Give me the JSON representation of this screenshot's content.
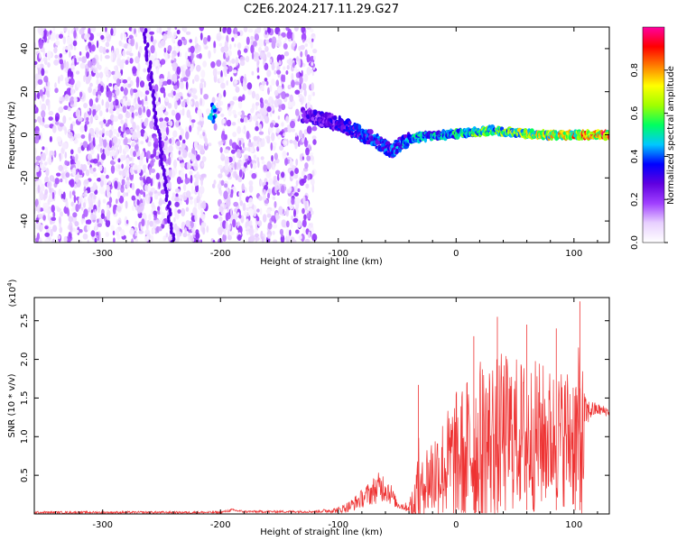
{
  "title": "C2E6.2024.217.11.29.G27",
  "chart_data": [
    {
      "type": "heatmap",
      "name": "spectrogram",
      "xlabel": "Height of straight line (km)",
      "ylabel": "Frequency (Hz)",
      "xlim": [
        -358,
        130
      ],
      "ylim": [
        -50,
        50
      ],
      "xticks": [
        -300,
        -200,
        -100,
        0,
        100
      ],
      "xtick_labels": [
        "-300",
        "-200",
        "-100",
        "0",
        "100"
      ],
      "yticks": [
        -40,
        -20,
        0,
        20,
        40
      ],
      "ytick_labels": [
        "-40",
        "-20",
        "0",
        "20",
        "40"
      ],
      "colorbar": {
        "label": "Normalized spectral amplitude",
        "range": [
          0,
          1
        ],
        "ticks": [
          0.0,
          0.2,
          0.4,
          0.6,
          0.8
        ],
        "tick_labels": [
          "0.0",
          "0.2",
          "0.4",
          "0.6",
          "0.8"
        ],
        "colors": [
          "#ffffff",
          "#e8d0ff",
          "#a040ff",
          "#6000e0",
          "#0000ff",
          "#00c8ff",
          "#00ff60",
          "#a0ff00",
          "#ffff00",
          "#ff8000",
          "#ff0000",
          "#ff00a0"
        ]
      },
      "noise_region": [
        -358,
        -120
      ],
      "signal_trace": {
        "x": [
          -130,
          -110,
          -90,
          -70,
          -55,
          -45,
          -30,
          -10,
          10,
          30,
          50,
          70,
          90,
          110,
          130
        ],
        "y": [
          9,
          7,
          3,
          -2,
          -8,
          -3,
          -1,
          0,
          1,
          2,
          1,
          0,
          0,
          0,
          0
        ],
        "amplitude": [
          0.3,
          0.35,
          0.4,
          0.45,
          0.45,
          0.5,
          0.55,
          0.6,
          0.65,
          0.7,
          0.75,
          0.8,
          0.85,
          0.95,
          1.0
        ]
      }
    },
    {
      "type": "line",
      "name": "snr",
      "xlabel": "Height of straight line (km)",
      "ylabel": "SNR (10 * v/v)",
      "y_multiplier_label": "(x10",
      "y_multiplier_exp": "4",
      "y_multiplier_close": ")",
      "xlim": [
        -358,
        130
      ],
      "ylim": [
        0,
        2.8
      ],
      "xticks": [
        -300,
        -200,
        -100,
        0,
        100
      ],
      "xtick_labels": [
        "-300",
        "-200",
        "-100",
        "0",
        "100"
      ],
      "yticks": [
        0.5,
        1.0,
        1.5,
        2.0,
        2.5
      ],
      "ytick_labels": [
        "0.5",
        "1.0",
        "1.5",
        "2.0",
        "2.5"
      ],
      "color": "#ee3333",
      "envelope": {
        "x": [
          -358,
          -200,
          -190,
          -180,
          -120,
          -100,
          -90,
          -80,
          -70,
          -65,
          -60,
          -55,
          -50,
          -40,
          -35,
          -32,
          -30,
          -25,
          -20,
          -10,
          0,
          10,
          20,
          30,
          40,
          50,
          60,
          70,
          80,
          90,
          100,
          105,
          108,
          110,
          115,
          120,
          130
        ],
        "mean": [
          0.02,
          0.02,
          0.05,
          0.03,
          0.03,
          0.05,
          0.1,
          0.2,
          0.3,
          0.35,
          0.35,
          0.25,
          0.12,
          0.08,
          0.1,
          0.15,
          0.3,
          0.45,
          0.5,
          0.6,
          0.7,
          0.8,
          0.9,
          0.95,
          1.0,
          1.05,
          1.0,
          1.0,
          1.0,
          1.0,
          1.0,
          0.9,
          0.9,
          1.3,
          1.35,
          1.35,
          1.32
        ],
        "spread": [
          0.015,
          0.015,
          0.02,
          0.015,
          0.015,
          0.04,
          0.08,
          0.12,
          0.18,
          0.2,
          0.2,
          0.14,
          0.05,
          0.06,
          0.5,
          0.9,
          0.3,
          0.5,
          0.6,
          0.7,
          0.9,
          1.0,
          1.1,
          1.1,
          1.1,
          1.0,
          1.0,
          1.0,
          0.9,
          0.9,
          1.0,
          1.3,
          1.0,
          0.2,
          0.12,
          0.08,
          0.06
        ]
      },
      "peaks": [
        {
          "x": -32,
          "y": 1.67
        },
        {
          "x": 15,
          "y": 2.3
        },
        {
          "x": 35,
          "y": 2.55
        },
        {
          "x": 60,
          "y": 2.45
        },
        {
          "x": 85,
          "y": 2.4
        },
        {
          "x": 105,
          "y": 2.75
        }
      ]
    }
  ]
}
